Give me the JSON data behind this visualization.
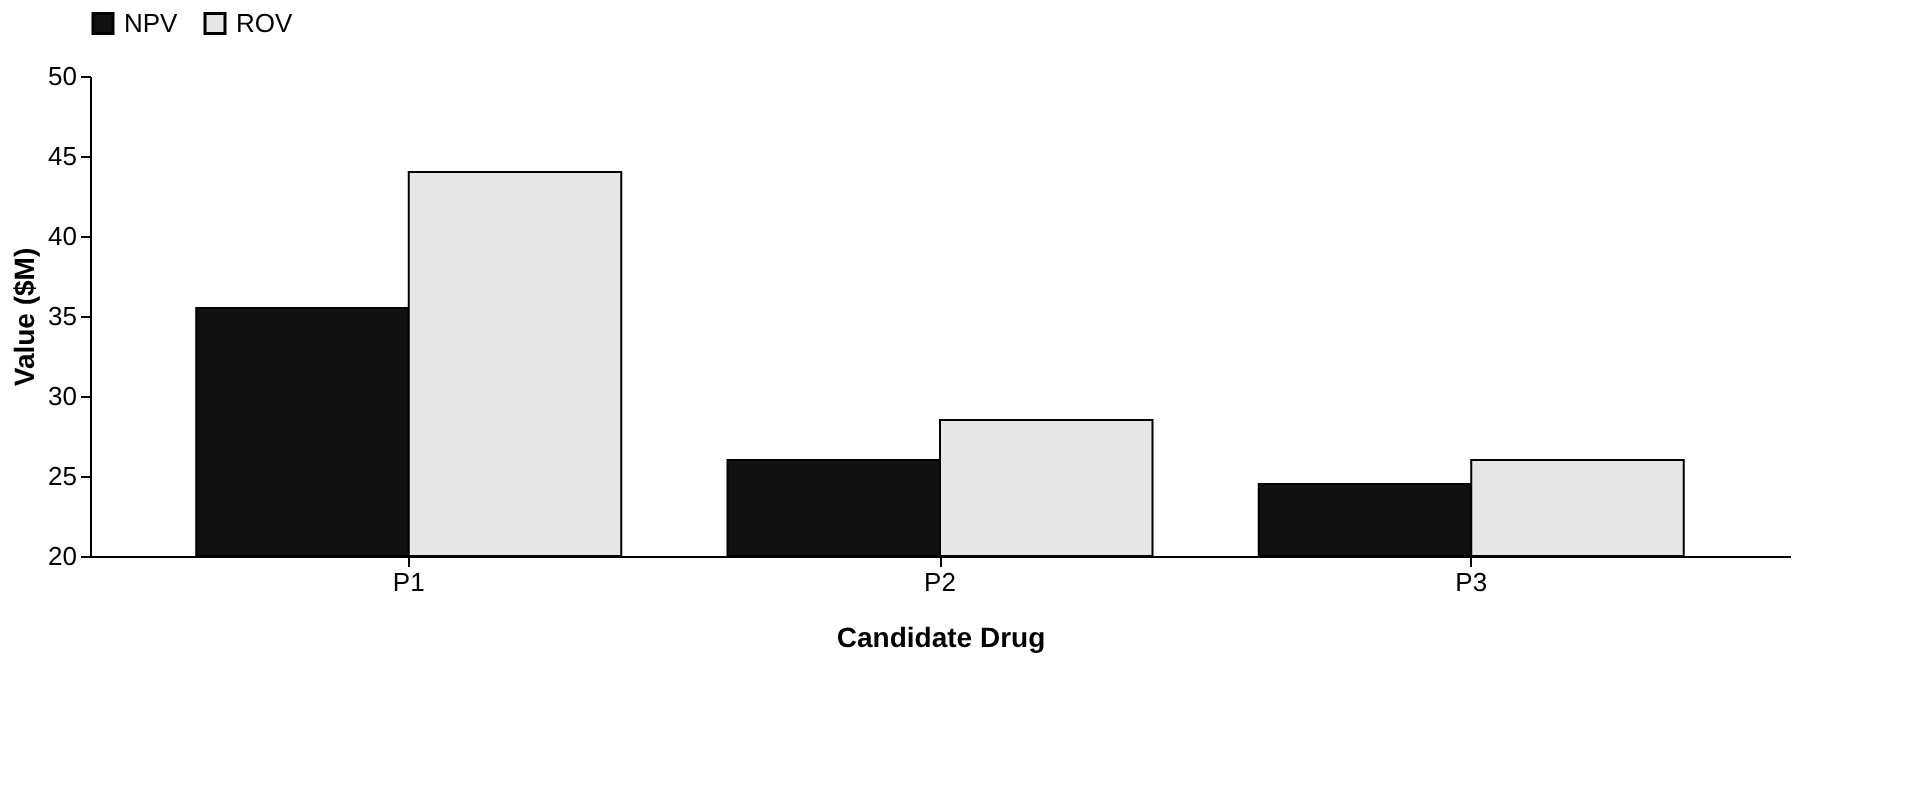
{
  "chart_data": {
    "type": "bar",
    "xlabel": "Candidate Drug",
    "ylabel": "Value ($M)",
    "categories": [
      "P1",
      "P2",
      "P3"
    ],
    "series": [
      {
        "name": "NPV",
        "color": "#111111",
        "values": [
          35.5,
          26,
          24.5
        ]
      },
      {
        "name": "ROV",
        "color": "#e6e6e6",
        "values": [
          44,
          28.5,
          26
        ]
      }
    ],
    "ylim": [
      20,
      50
    ],
    "yticks": [
      20,
      25,
      30,
      35,
      40,
      45,
      50
    ],
    "grid": false,
    "legend": "top"
  }
}
